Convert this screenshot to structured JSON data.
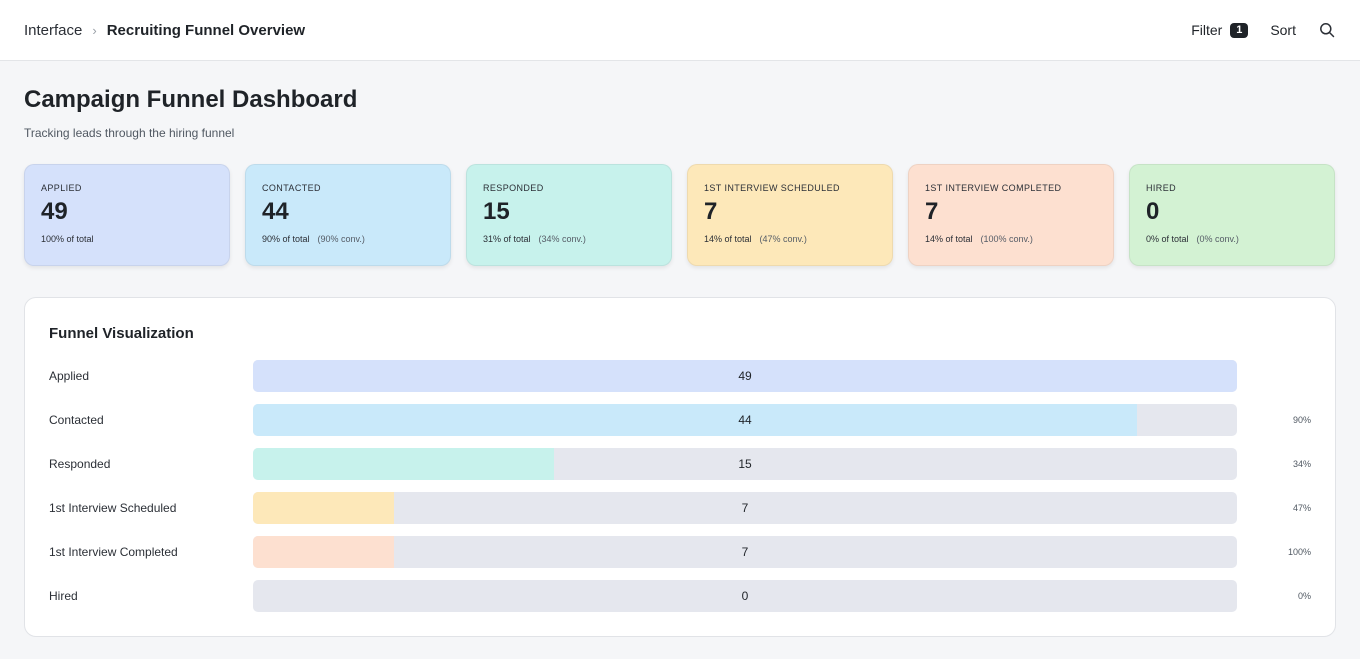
{
  "breadcrumb": {
    "root": "Interface",
    "separator": "›",
    "current": "Recruiting Funnel Overview"
  },
  "toolbar": {
    "filter_label": "Filter",
    "filter_count": "1",
    "sort_label": "Sort",
    "search_icon": "search-icon"
  },
  "page": {
    "title": "Campaign Funnel Dashboard",
    "subtitle": "Tracking leads through the hiring funnel"
  },
  "stats": [
    {
      "label": "APPLIED",
      "value": "49",
      "pct": "100% of total",
      "conv": "",
      "color": "#d5e1fb"
    },
    {
      "label": "CONTACTED",
      "value": "44",
      "pct": "90% of total",
      "conv": "(90% conv.)",
      "color": "#c9e9fa"
    },
    {
      "label": "RESPONDED",
      "value": "15",
      "pct": "31% of total",
      "conv": "(34% conv.)",
      "color": "#c7f2ec"
    },
    {
      "label": "1ST INTERVIEW SCHEDULED",
      "value": "7",
      "pct": "14% of total",
      "conv": "(47% conv.)",
      "color": "#fde8b9"
    },
    {
      "label": "1ST INTERVIEW COMPLETED",
      "value": "7",
      "pct": "14% of total",
      "conv": "(100% conv.)",
      "color": "#fde0d0"
    },
    {
      "label": "HIRED",
      "value": "0",
      "pct": "0% of total",
      "conv": "(0% conv.)",
      "color": "#d3f2d3"
    }
  ],
  "funnel": {
    "title": "Funnel Visualization",
    "rows": [
      {
        "label": "Applied",
        "count": "49",
        "pct_label": "",
        "fill_fraction": 1.0,
        "color": "#d5e1fb"
      },
      {
        "label": "Contacted",
        "count": "44",
        "pct_label": "90%",
        "fill_fraction": 0.898,
        "color": "#c9e9fa"
      },
      {
        "label": "Responded",
        "count": "15",
        "pct_label": "34%",
        "fill_fraction": 0.306,
        "color": "#c7f2ec"
      },
      {
        "label": "1st Interview Scheduled",
        "count": "7",
        "pct_label": "47%",
        "fill_fraction": 0.143,
        "color": "#fde8b9"
      },
      {
        "label": "1st Interview Completed",
        "count": "7",
        "pct_label": "100%",
        "fill_fraction": 0.143,
        "color": "#fde0d0"
      },
      {
        "label": "Hired",
        "count": "0",
        "pct_label": "0%",
        "fill_fraction": 0.0,
        "color": "#d3f2d3"
      }
    ]
  }
}
